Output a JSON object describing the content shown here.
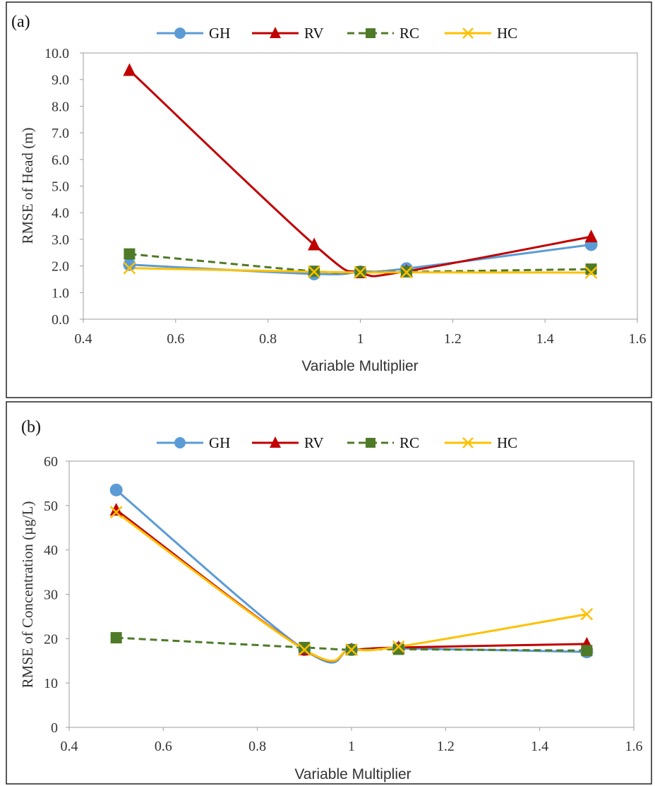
{
  "chart_data": [
    {
      "type": "line",
      "panel_label": "(a)",
      "xlabel": "Variable Multiplier",
      "ylabel": "RMSE of Head (m)",
      "xlim": [
        0.4,
        1.6
      ],
      "ylim": [
        0,
        10
      ],
      "x_ticks": [
        "0.4",
        "0.6",
        "0.8",
        "1",
        "1.2",
        "1.4",
        "1.6"
      ],
      "y_ticks": [
        "0.0",
        "1.0",
        "2.0",
        "3.0",
        "4.0",
        "5.0",
        "6.0",
        "7.0",
        "8.0",
        "9.0",
        "10.0"
      ],
      "grid": false,
      "legend_position": "top",
      "x": [
        0.5,
        0.9,
        1.0,
        1.1,
        1.5
      ],
      "series": [
        {
          "name": "GH",
          "values": [
            2.05,
            1.7,
            1.78,
            1.9,
            2.8
          ],
          "color": "#5b9bd5",
          "marker": "circle",
          "dash": false
        },
        {
          "name": "RV",
          "values": [
            9.35,
            2.8,
            1.75,
            1.8,
            3.1
          ],
          "color": "#c00000",
          "marker": "triangle",
          "dash": false
        },
        {
          "name": "RC",
          "values": [
            2.45,
            1.8,
            1.78,
            1.78,
            1.88
          ],
          "color": "#4f7a28",
          "marker": "square",
          "dash": true
        },
        {
          "name": "HC",
          "values": [
            1.92,
            1.78,
            1.76,
            1.76,
            1.75
          ],
          "color": "#ffc000",
          "marker": "x",
          "dash": false
        }
      ]
    },
    {
      "type": "line",
      "panel_label": "(b)",
      "xlabel": "Variable Multiplier",
      "ylabel": "RMSE of Concentration (µg/L)",
      "xlim": [
        0.4,
        1.6
      ],
      "ylim": [
        0,
        60
      ],
      "x_ticks": [
        "0.4",
        "0.6",
        "0.8",
        "1",
        "1.2",
        "1.4",
        "1.6"
      ],
      "y_ticks": [
        "0",
        "10",
        "20",
        "30",
        "40",
        "50",
        "60"
      ],
      "grid": false,
      "legend_position": "top",
      "x": [
        0.5,
        0.9,
        1.0,
        1.1,
        1.5
      ],
      "series": [
        {
          "name": "GH",
          "values": [
            53.5,
            17.5,
            17.5,
            17.8,
            17.0
          ],
          "color": "#5b9bd5",
          "marker": "circle",
          "dash": false
        },
        {
          "name": "RV",
          "values": [
            49.0,
            17.5,
            17.5,
            18.0,
            18.8
          ],
          "color": "#c00000",
          "marker": "triangle",
          "dash": false
        },
        {
          "name": "RC",
          "values": [
            20.2,
            18.0,
            17.5,
            17.6,
            17.3
          ],
          "color": "#4f7a28",
          "marker": "square",
          "dash": true
        },
        {
          "name": "HC",
          "values": [
            48.5,
            17.5,
            17.5,
            18.2,
            25.5
          ],
          "color": "#ffc000",
          "marker": "x",
          "dash": false
        }
      ]
    }
  ]
}
